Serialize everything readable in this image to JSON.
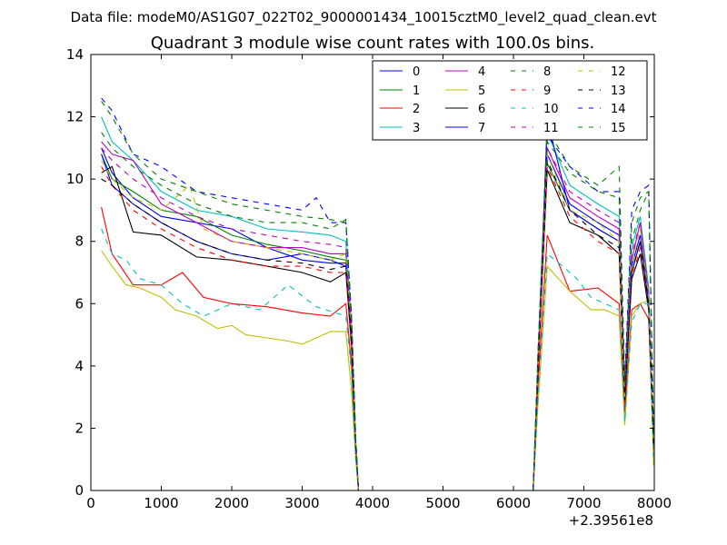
{
  "figure": {
    "supertitle": "Data file: modeM0/AS1G07_022T02_9000001434_10015cztM0_level2_quad_clean.evt",
    "title": "Quadrant 3 module wise count rates with 100.0s bins.",
    "x_offset_label": "+2.39561e8"
  },
  "chart_data": {
    "type": "line",
    "title": "Quadrant 3 module wise count rates with 100.0s bins.",
    "xlabel": "",
    "ylabel": "",
    "xlim": [
      0,
      8000
    ],
    "ylim": [
      0,
      14
    ],
    "x_ticks": [
      0,
      1000,
      2000,
      3000,
      4000,
      5000,
      6000,
      7000,
      8000
    ],
    "y_ticks": [
      0,
      2,
      4,
      6,
      8,
      10,
      12,
      14
    ],
    "x_offset": 239561000,
    "grid": false,
    "legend_placement": "top-right",
    "legend_columns": 4,
    "colors": {
      "blue": "#0000ff",
      "green": "#008000",
      "red": "#ff0000",
      "cyan": "#00bfbf",
      "magenta": "#bf00bf",
      "olive": "#bfbf00",
      "black": "#000000"
    },
    "series": [
      {
        "name": "0",
        "color": "#0000ff",
        "dashed": false,
        "x": [
          150,
          300,
          600,
          1000,
          1500,
          2000,
          2500,
          3000,
          3400,
          3620,
          3700,
          3760,
          3800,
          6280,
          6350,
          6480,
          6800,
          7200,
          7500,
          7580,
          7680,
          7800,
          7920,
          7990
        ],
        "y": [
          11.0,
          10.2,
          9.4,
          8.8,
          8.6,
          8.4,
          7.8,
          7.4,
          7.3,
          7.3,
          5.0,
          1.5,
          0,
          0,
          4.0,
          10.8,
          9.2,
          8.6,
          8.2,
          3.1,
          7.2,
          8.2,
          6.0,
          1.6
        ]
      },
      {
        "name": "1",
        "color": "#008000",
        "dashed": false,
        "x": [
          150,
          300,
          600,
          1000,
          1500,
          2000,
          2500,
          3000,
          3400,
          3620,
          3700,
          3760,
          3800,
          6280,
          6350,
          6480,
          6800,
          7200,
          7500,
          7580,
          7680,
          7800,
          7920,
          7990
        ],
        "y": [
          10.8,
          10.0,
          9.6,
          9.0,
          8.8,
          8.2,
          7.9,
          7.7,
          7.5,
          7.4,
          5.0,
          1.5,
          0,
          0,
          4.0,
          10.5,
          9.0,
          8.4,
          8.0,
          3.0,
          7.0,
          8.0,
          6.2,
          1.5
        ]
      },
      {
        "name": "2",
        "color": "#ff0000",
        "dashed": false,
        "x": [
          150,
          300,
          600,
          1000,
          1300,
          1600,
          2000,
          2500,
          3000,
          3400,
          3620,
          3700,
          3760,
          3800,
          6280,
          6350,
          6480,
          6800,
          7200,
          7500,
          7580,
          7680,
          7800,
          7920,
          7990
        ],
        "y": [
          9.1,
          7.6,
          6.6,
          6.6,
          7.0,
          6.2,
          6.0,
          5.9,
          5.7,
          5.6,
          6.0,
          4.0,
          1.2,
          0,
          0,
          3.4,
          8.2,
          6.4,
          6.5,
          6.0,
          2.5,
          5.8,
          6.0,
          5.5,
          1.3
        ]
      },
      {
        "name": "3",
        "color": "#00bfbf",
        "dashed": false,
        "x": [
          150,
          300,
          600,
          1000,
          1500,
          2000,
          2500,
          3000,
          3400,
          3620,
          3700,
          3760,
          3800,
          6280,
          6350,
          6480,
          6800,
          7200,
          7500,
          7580,
          7680,
          7800,
          7920,
          7990
        ],
        "y": [
          12.0,
          11.2,
          10.6,
          9.6,
          9.0,
          8.8,
          8.4,
          8.3,
          8.2,
          8.0,
          5.3,
          1.6,
          0,
          0,
          4.3,
          11.5,
          9.8,
          9.2,
          8.8,
          3.3,
          7.8,
          8.8,
          6.5,
          1.7
        ]
      },
      {
        "name": "4",
        "color": "#bf00bf",
        "dashed": false,
        "x": [
          150,
          300,
          600,
          1000,
          1500,
          2000,
          2500,
          3000,
          3400,
          3620,
          3700,
          3760,
          3800,
          6280,
          6350,
          6480,
          6800,
          7200,
          7500,
          7580,
          7680,
          7800,
          7920,
          7990
        ],
        "y": [
          11.2,
          10.8,
          10.6,
          9.2,
          8.6,
          8.0,
          7.8,
          7.8,
          7.6,
          7.6,
          5.1,
          1.5,
          0,
          0,
          4.1,
          11.0,
          9.4,
          8.8,
          8.4,
          3.2,
          7.4,
          8.6,
          6.2,
          1.6
        ]
      },
      {
        "name": "5",
        "color": "#bfbf00",
        "dashed": false,
        "x": [
          150,
          300,
          500,
          700,
          1000,
          1200,
          1500,
          1800,
          2000,
          2200,
          2500,
          2800,
          3000,
          3200,
          3400,
          3620,
          3700,
          3760,
          3800,
          6280,
          6350,
          6480,
          6800,
          7100,
          7300,
          7500,
          7580,
          7680,
          7800,
          7920,
          7990
        ],
        "y": [
          7.7,
          7.2,
          6.6,
          6.5,
          6.2,
          5.8,
          5.6,
          5.2,
          5.3,
          5.0,
          4.9,
          4.8,
          4.7,
          4.9,
          5.1,
          5.1,
          3.2,
          1.0,
          0,
          0,
          2.8,
          7.2,
          6.4,
          5.8,
          5.8,
          5.6,
          2.1,
          5.6,
          6.0,
          6.1,
          0.8
        ]
      },
      {
        "name": "6",
        "color": "#000000",
        "dashed": false,
        "x": [
          150,
          300,
          600,
          1000,
          1500,
          2000,
          2500,
          3000,
          3400,
          3620,
          3700,
          3760,
          3800,
          6280,
          6350,
          6480,
          6800,
          7200,
          7500,
          7580,
          7680,
          7800,
          7920,
          7990
        ],
        "y": [
          10.2,
          10.4,
          8.3,
          8.2,
          7.5,
          7.4,
          7.2,
          7.0,
          6.7,
          7.0,
          4.6,
          1.3,
          0,
          0,
          3.9,
          10.3,
          8.6,
          8.2,
          7.6,
          2.9,
          6.8,
          7.6,
          5.8,
          1.5
        ]
      },
      {
        "name": "7",
        "color": "#0000ff",
        "dashed": false,
        "x": [
          150,
          300,
          600,
          1000,
          1500,
          2000,
          2500,
          3000,
          3400,
          3620,
          3700,
          3760,
          3800,
          6280,
          6350,
          6480,
          6800,
          7200,
          7500,
          7580,
          7680,
          7800,
          7920,
          7990
        ],
        "y": [
          10.8,
          9.8,
          9.2,
          8.6,
          8.0,
          7.6,
          7.4,
          7.6,
          7.4,
          7.2,
          4.9,
          1.4,
          0,
          0,
          4.0,
          11.9,
          9.0,
          8.4,
          8.0,
          3.0,
          7.0,
          8.0,
          6.0,
          1.6
        ]
      },
      {
        "name": "8",
        "color": "#008000",
        "dashed": true,
        "x": [
          150,
          300,
          600,
          1000,
          1500,
          2000,
          2500,
          3000,
          3400,
          3620,
          3700,
          3760,
          3800,
          6280,
          6350,
          6480,
          6800,
          7200,
          7500,
          7580,
          7680,
          7800,
          7920,
          7990
        ],
        "y": [
          11.5,
          11.0,
          10.4,
          9.8,
          9.2,
          8.8,
          8.6,
          8.6,
          8.4,
          8.7,
          5.6,
          1.7,
          0,
          0,
          4.4,
          11.6,
          10.4,
          9.8,
          10.4,
          3.4,
          8.0,
          9.0,
          9.6,
          1.8
        ]
      },
      {
        "name": "9",
        "color": "#ff0000",
        "dashed": true,
        "x": [
          150,
          300,
          600,
          1000,
          1500,
          2000,
          2500,
          3000,
          3400,
          3620,
          3700,
          3760,
          3800,
          6280,
          6350,
          6480,
          6800,
          7200,
          7500,
          7580,
          7680,
          7800,
          7920,
          7990
        ],
        "y": [
          10.4,
          9.8,
          9.0,
          8.4,
          7.8,
          7.4,
          7.2,
          7.2,
          7.0,
          7.0,
          4.7,
          1.4,
          0,
          0,
          3.8,
          10.4,
          8.8,
          8.0,
          7.6,
          2.8,
          6.8,
          7.8,
          6.0,
          1.5
        ]
      },
      {
        "name": "10",
        "color": "#00bfbf",
        "dashed": true,
        "x": [
          150,
          300,
          500,
          700,
          1000,
          1300,
          1600,
          2000,
          2400,
          2800,
          3200,
          3620,
          3700,
          3760,
          3800,
          6280,
          6350,
          6480,
          6700,
          6900,
          7100,
          7300,
          7500,
          7580,
          7680,
          7800,
          7920,
          7990
        ],
        "y": [
          8.4,
          7.6,
          7.4,
          6.8,
          6.6,
          6.0,
          5.6,
          6.0,
          5.8,
          6.6,
          5.9,
          5.6,
          3.8,
          1.1,
          0,
          0,
          3.0,
          7.6,
          7.2,
          6.8,
          6.2,
          6.0,
          5.8,
          2.2,
          5.4,
          6.0,
          6.0,
          1.1
        ]
      },
      {
        "name": "11",
        "color": "#bf00bf",
        "dashed": true,
        "x": [
          150,
          300,
          600,
          1000,
          1500,
          2000,
          2500,
          3000,
          3400,
          3620,
          3700,
          3760,
          3800,
          6280,
          6350,
          6480,
          6800,
          7200,
          7500,
          7580,
          7680,
          7800,
          7920,
          7990
        ],
        "y": [
          11.0,
          10.6,
          10.0,
          9.4,
          8.8,
          8.4,
          8.2,
          8.0,
          7.9,
          7.8,
          5.2,
          1.5,
          0,
          0,
          4.1,
          11.0,
          9.6,
          9.0,
          8.6,
          3.2,
          7.6,
          8.6,
          6.4,
          1.6
        ]
      },
      {
        "name": "12",
        "color": "#bfbf00",
        "dashed": true,
        "x": [
          150,
          300,
          600,
          1000,
          1400,
          1600,
          2000,
          2500,
          3000,
          3400,
          3620,
          3700,
          3760,
          3800,
          6280,
          6350,
          6480,
          6800,
          7200,
          7500,
          7580,
          7680,
          7800,
          7920,
          7990
        ],
        "y": [
          10.6,
          10.0,
          9.4,
          9.0,
          9.8,
          8.4,
          8.0,
          7.8,
          7.6,
          7.4,
          7.6,
          5.0,
          1.4,
          0,
          0,
          4.0,
          10.8,
          9.0,
          8.6,
          8.0,
          3.0,
          7.2,
          8.4,
          6.2,
          1.5
        ]
      },
      {
        "name": "13",
        "color": "#000000",
        "dashed": true,
        "x": [
          150,
          300,
          600,
          1000,
          1500,
          2000,
          2500,
          3000,
          3400,
          3620,
          3700,
          3760,
          3800,
          6280,
          6350,
          6480,
          6800,
          7200,
          7500,
          7580,
          7680,
          7800,
          7920,
          7990
        ],
        "y": [
          10.0,
          9.8,
          9.2,
          8.6,
          8.0,
          7.6,
          7.4,
          7.3,
          7.1,
          7.2,
          4.8,
          1.4,
          0,
          0,
          3.9,
          10.6,
          9.0,
          8.2,
          7.8,
          2.9,
          7.0,
          8.0,
          6.0,
          1.4
        ]
      },
      {
        "name": "14",
        "color": "#0000ff",
        "dashed": true,
        "x": [
          150,
          300,
          600,
          1000,
          1500,
          2000,
          2500,
          3000,
          3200,
          3400,
          3620,
          3700,
          3760,
          3800,
          6280,
          6350,
          6480,
          6800,
          7200,
          7500,
          7580,
          7680,
          7800,
          7920,
          7990
        ],
        "y": [
          12.6,
          12.2,
          10.8,
          10.4,
          9.6,
          9.4,
          9.2,
          9.0,
          9.4,
          8.6,
          8.6,
          5.6,
          1.7,
          0,
          0,
          4.5,
          11.4,
          10.4,
          9.6,
          9.6,
          3.5,
          9.0,
          9.6,
          9.8,
          1.9
        ]
      },
      {
        "name": "15",
        "color": "#008000",
        "dashed": true,
        "x": [
          150,
          300,
          600,
          1000,
          1500,
          2000,
          2500,
          3000,
          3400,
          3620,
          3700,
          3760,
          3800,
          6280,
          6350,
          6480,
          6800,
          7200,
          7500,
          7580,
          7680,
          7800,
          7920,
          7990
        ],
        "y": [
          12.5,
          12.0,
          10.8,
          10.0,
          9.6,
          9.2,
          9.0,
          8.8,
          8.7,
          8.6,
          5.6,
          1.7,
          0,
          0,
          4.4,
          11.2,
          10.2,
          9.6,
          9.4,
          3.4,
          8.6,
          9.4,
          9.6,
          1.8
        ]
      }
    ]
  }
}
